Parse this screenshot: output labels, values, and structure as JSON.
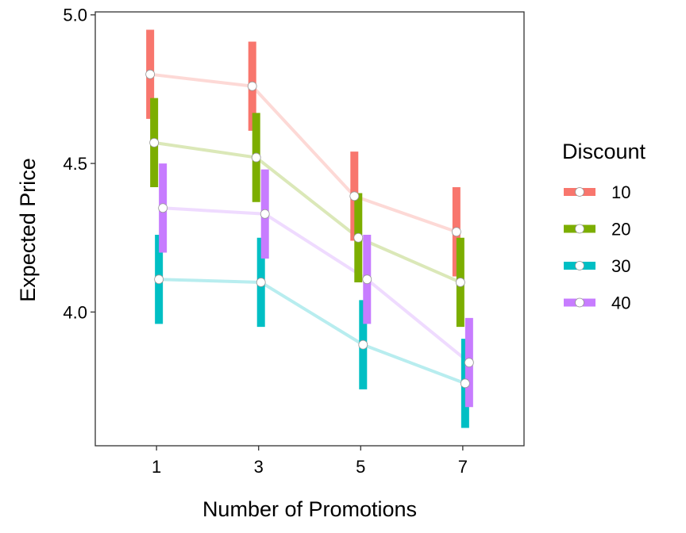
{
  "chart_data": {
    "type": "line",
    "title": "",
    "xlabel": "Number of Promotions",
    "ylabel": "Expected Price",
    "x": [
      1,
      3,
      5,
      7
    ],
    "x_tick_labels": [
      "1",
      "3",
      "5",
      "7"
    ],
    "xlim": [
      -0.2,
      8.2
    ],
    "ylim": [
      3.55,
      5.01
    ],
    "y_ticks": [
      4.0,
      4.5,
      5.0
    ],
    "y_tick_labels": [
      "4.0",
      "4.5",
      "5.0"
    ],
    "grid": false,
    "legend": {
      "title": "Discount",
      "position": "right"
    },
    "series": [
      {
        "name": "10",
        "color": "#F8766D",
        "values": [
          4.8,
          4.76,
          4.39,
          4.27
        ],
        "lower": [
          4.65,
          4.61,
          4.24,
          4.12
        ],
        "upper": [
          4.95,
          4.91,
          4.54,
          4.42
        ]
      },
      {
        "name": "20",
        "color": "#7CAE00",
        "values": [
          4.57,
          4.52,
          4.25,
          4.1
        ],
        "lower": [
          4.42,
          4.37,
          4.1,
          3.95
        ],
        "upper": [
          4.72,
          4.67,
          4.4,
          4.25
        ]
      },
      {
        "name": "30",
        "color": "#00BFC4",
        "values": [
          4.11,
          4.1,
          3.89,
          3.76
        ],
        "lower": [
          3.96,
          3.95,
          3.74,
          3.61
        ],
        "upper": [
          4.26,
          4.25,
          4.04,
          3.91
        ]
      },
      {
        "name": "40",
        "color": "#C77CFF",
        "values": [
          4.35,
          4.33,
          4.11,
          3.83
        ],
        "lower": [
          4.2,
          4.18,
          3.96,
          3.68
        ],
        "upper": [
          4.5,
          4.48,
          4.26,
          3.98
        ]
      }
    ]
  }
}
